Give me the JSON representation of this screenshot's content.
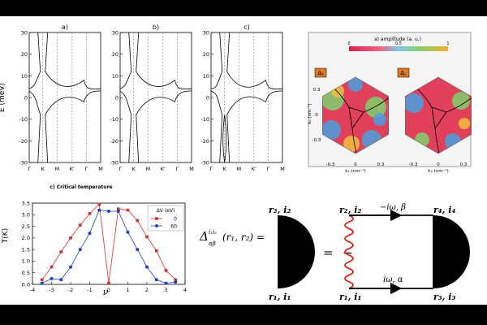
{
  "band_panels": {
    "titles": [
      "a)",
      "b)",
      "c)"
    ],
    "ylabel": "E (meV)",
    "yticks": [
      "30",
      "20",
      "10",
      "0",
      "-10",
      "-20",
      "-30"
    ],
    "xticks": [
      "Γ",
      "K",
      "M",
      "K'",
      "Γ",
      "M"
    ]
  },
  "amplitude_map": {
    "title": "a) amplitude (a. u.)",
    "colorbar_ticks": [
      "0",
      "0.5",
      "1"
    ],
    "colors": {
      "low": "#e0405a",
      "mid": "#7fd070",
      "high": "#f0c040",
      "blue": "#4aa0e0"
    },
    "panels": [
      {
        "tag": "Δᵧ",
        "xticks": [
          "-0.3",
          "0",
          "0.3"
        ],
        "xlabel": "kₓ (nm⁻¹)"
      },
      {
        "tag": "Δ꜀",
        "xticks": [
          "-0.3",
          "0",
          "0.3"
        ],
        "xlabel": "kₓ (nm⁻¹)"
      }
    ],
    "yticks": [
      "0.3",
      "0",
      "-0.3"
    ],
    "ylabel": "kᵧ (nm⁻¹)"
  },
  "chart_data": {
    "type": "line",
    "title": "c) Critical temperature",
    "xlabel": "ν",
    "ylabel": "T(K)",
    "xlim": [
      -4,
      4
    ],
    "ylim": [
      0,
      3.5
    ],
    "xticks": [
      "-4",
      "-3",
      "-2",
      "-1",
      "0",
      "1",
      "2",
      "3",
      "4"
    ],
    "yticks": [
      "0.0",
      "0.5",
      "1.0",
      "1.5",
      "2.0",
      "2.5",
      "3.0",
      "3.5"
    ],
    "legend_title": "ΔV (eV)",
    "legend_position": "top-right",
    "series": [
      {
        "name": "0",
        "color": "#d03030",
        "x": [
          -3.5,
          -3,
          -2.5,
          -2,
          -1.5,
          -1,
          -0.5,
          0,
          0.5,
          1,
          1.5,
          2,
          2.5,
          3,
          3.5
        ],
        "y": [
          0.2,
          0.75,
          1.4,
          2.0,
          2.55,
          3.05,
          3.45,
          0.05,
          3.25,
          3.2,
          2.75,
          2.05,
          1.45,
          0.6,
          0.2
        ]
      },
      {
        "name": "60",
        "color": "#2040c0",
        "x": [
          -3.5,
          -3,
          -2.5,
          -2,
          -1.5,
          -1,
          -0.5,
          0,
          0.5,
          1,
          1.5,
          2,
          2.5,
          3,
          3.5
        ],
        "y": [
          0.05,
          0.25,
          0.2,
          0.75,
          1.5,
          2.2,
          3.2,
          3.15,
          3.15,
          2.25,
          1.5,
          0.75,
          0.2,
          0.05,
          0.1
        ]
      }
    ]
  },
  "equation": {
    "lhs": "Δ",
    "lhs_super": "i₁i₂",
    "lhs_sub": "αβ",
    "lhs_args": "(r₁, r₂) =",
    "equals": "=",
    "minus": "−",
    "r2i2": "r₂, i₂",
    "r1i1": "r₁, i₁",
    "r4i4": "r₄, i₄",
    "r3i3": "r₃, i₃",
    "top_label": "−iω, β",
    "bottom_label": "iω, α"
  }
}
